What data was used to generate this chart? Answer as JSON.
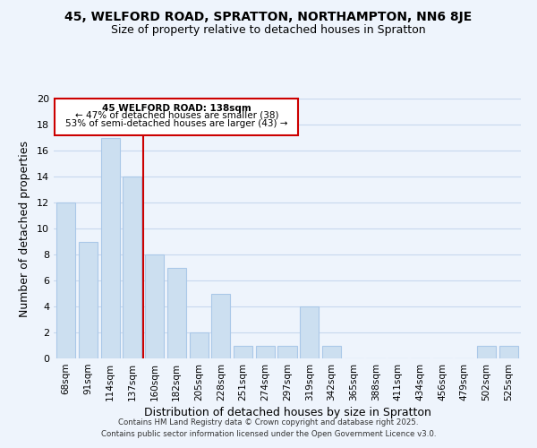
{
  "title": "45, WELFORD ROAD, SPRATTON, NORTHAMPTON, NN6 8JE",
  "subtitle": "Size of property relative to detached houses in Spratton",
  "xlabel": "Distribution of detached houses by size in Spratton",
  "ylabel": "Number of detached properties",
  "bar_color": "#ccdff0",
  "bar_edge_color": "#aac8e8",
  "grid_color": "#c8d8ee",
  "background_color": "#eef4fc",
  "annotation_box_color": "#ffffff",
  "annotation_box_edge": "#cc0000",
  "vline_color": "#cc0000",
  "categories": [
    "68sqm",
    "91sqm",
    "114sqm",
    "137sqm",
    "160sqm",
    "182sqm",
    "205sqm",
    "228sqm",
    "251sqm",
    "274sqm",
    "297sqm",
    "319sqm",
    "342sqm",
    "365sqm",
    "388sqm",
    "411sqm",
    "434sqm",
    "456sqm",
    "479sqm",
    "502sqm",
    "525sqm"
  ],
  "values": [
    12,
    9,
    17,
    14,
    8,
    7,
    2,
    5,
    1,
    1,
    1,
    4,
    1,
    0,
    0,
    0,
    0,
    0,
    0,
    1,
    1
  ],
  "ylim": [
    0,
    20
  ],
  "yticks": [
    0,
    2,
    4,
    6,
    8,
    10,
    12,
    14,
    16,
    18,
    20
  ],
  "vline_pos": 3.5,
  "annotation_text_line1": "45 WELFORD ROAD: 138sqm",
  "annotation_text_line2": "← 47% of detached houses are smaller (38)",
  "annotation_text_line3": "53% of semi-detached houses are larger (43) →",
  "footer_line1": "Contains HM Land Registry data © Crown copyright and database right 2025.",
  "footer_line2": "Contains public sector information licensed under the Open Government Licence v3.0."
}
